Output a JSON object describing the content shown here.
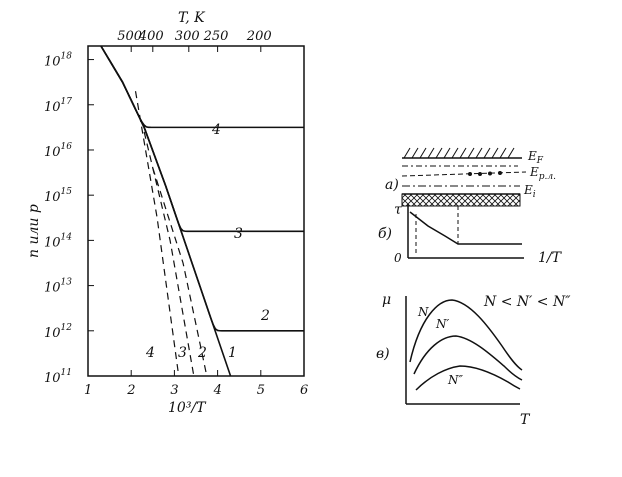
{
  "chart_data": {
    "type": "line",
    "xlabel": "10³/T",
    "ylabel": "n или p",
    "top_axis_label": "T, K",
    "x_ticks": [
      "1",
      "2",
      "3",
      "4",
      "5",
      "6"
    ],
    "top_ticks": [
      "500",
      "400",
      "300",
      "250",
      "200"
    ],
    "top_tick_values_K": [
      500,
      400,
      300,
      250,
      200
    ],
    "y_scale": "log",
    "y_tick_exponents": [
      11,
      12,
      13,
      14,
      15,
      16,
      17,
      18
    ],
    "y_tick_base": "10",
    "xlim": [
      1,
      6
    ],
    "ylim_exp": [
      11,
      18.3
    ],
    "intrinsic": {
      "name": "1",
      "x": [
        1.3,
        1.8,
        2.3,
        2.8,
        3.3,
        3.8,
        4.3
      ],
      "log_y": [
        18.3,
        17.5,
        16.5,
        15.2,
        13.8,
        12.4,
        11.0
      ]
    },
    "saturated_series": [
      {
        "name": "2",
        "log_y_sat": 12.0
      },
      {
        "name": "3",
        "log_y_sat": 14.2
      },
      {
        "name": "4",
        "log_y_sat": 16.5
      }
    ],
    "dashed_series": [
      {
        "name": "2",
        "x": [
          2.5,
          3.2,
          3.75
        ],
        "log_y": [
          15.6,
          13.5,
          11.0
        ]
      },
      {
        "name": "3",
        "x": [
          2.3,
          2.9,
          3.45
        ],
        "log_y": [
          16.4,
          14.0,
          11.0
        ]
      },
      {
        "name": "4",
        "x": [
          2.1,
          2.6,
          3.1
        ],
        "log_y": [
          17.3,
          14.5,
          11.0
        ]
      }
    ],
    "curve_labels": [
      "1",
      "2",
      "3",
      "4"
    ]
  },
  "inset_a": {
    "label": "а)",
    "levels": [
      "E",
      "F",
      "E",
      "р.л.",
      "E",
      "i"
    ]
  },
  "inset_b": {
    "label": "б)",
    "y_symbol": "τ",
    "origin": "0",
    "x_label": "1/T"
  },
  "inset_c": {
    "label": "в)",
    "y_symbol": "μ",
    "x_symbol": "T",
    "condition": "N < N′ < N″",
    "curve_labels": [
      "N",
      "N′",
      "N″"
    ]
  }
}
